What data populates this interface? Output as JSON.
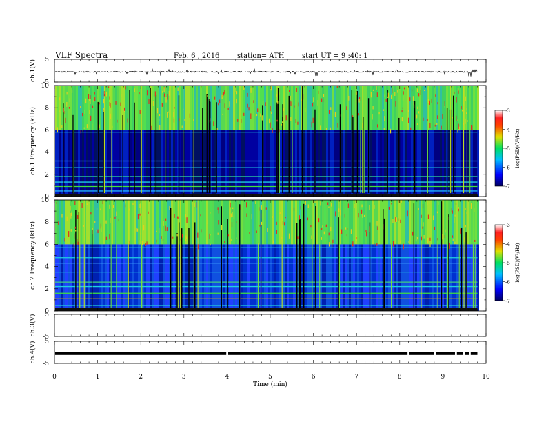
{
  "header": {
    "title": "VLF Spectra",
    "date": "Feb. 6 , 2016",
    "station": "station= ATH",
    "start": "start UT = 9 :40: 1"
  },
  "chart_data": [
    {
      "type": "line",
      "panel": "ch.1 waveform",
      "ylabel": "ch.1(V)",
      "ylim": [
        -5,
        5
      ],
      "yticks": [
        "5",
        "-5"
      ],
      "xlim": [
        0,
        10
      ],
      "series": [
        {
          "values_description": "noisy trace near -0.5 V with spikes to about -2 and +1",
          "level": -0.5
        }
      ]
    },
    {
      "type": "heatmap",
      "panel": "ch.1 spectrogram",
      "ylabel": "ch.1 Frequency (kHz)",
      "ylim": [
        0,
        10
      ],
      "yticks": [
        "0",
        "2",
        "4",
        "6",
        "8",
        "10"
      ],
      "xlim": [
        0,
        9.8
      ],
      "colorbar": {
        "label": "log(PSD)(V²/Hz)",
        "ticks": [
          "-3",
          "-4",
          "-5",
          "-6",
          "-7"
        ],
        "range": [
          -7,
          -3
        ]
      }
    },
    {
      "type": "heatmap",
      "panel": "ch.2 spectrogram",
      "ylabel": "ch.2 Frequency (kHz)",
      "ylim": [
        0,
        10
      ],
      "yticks": [
        "0",
        "2",
        "4",
        "6",
        "8",
        "10"
      ],
      "xlim": [
        0,
        9.8
      ],
      "colorbar": {
        "label": "log(PSD)(V²/Hz)",
        "ticks": [
          "-3",
          "-4",
          "-5",
          "-6",
          "-7"
        ],
        "range": [
          -7,
          -3
        ]
      }
    },
    {
      "type": "line",
      "panel": "ch.3 waveform",
      "ylabel": "ch.3(V)",
      "ylim": [
        -5,
        5
      ],
      "yticks": [
        "5",
        "-5"
      ],
      "series": []
    },
    {
      "type": "line",
      "panel": "ch.4 waveform",
      "ylabel": "ch.4(V)",
      "ylim": [
        -5,
        5
      ],
      "yticks": [
        "5",
        "-5"
      ],
      "series": [
        {
          "values_description": "thick band near -0.5 V with small gaps",
          "level": -0.5,
          "gaps_min": [
            4.0,
            8.2,
            8.82,
            9.3,
            9.48,
            9.62
          ]
        }
      ]
    }
  ],
  "xaxis": {
    "label": "Time (min)",
    "ticks": [
      "0",
      "1",
      "2",
      "3",
      "4",
      "5",
      "6",
      "7",
      "8",
      "9",
      "10"
    ],
    "range": [
      0,
      10
    ]
  },
  "colors": {
    "background_low": "#000060",
    "mid": "#2050ff",
    "cyan": "#20d0e0",
    "green": "#40e040",
    "yellow": "#d0e020",
    "red": "#e02020"
  }
}
